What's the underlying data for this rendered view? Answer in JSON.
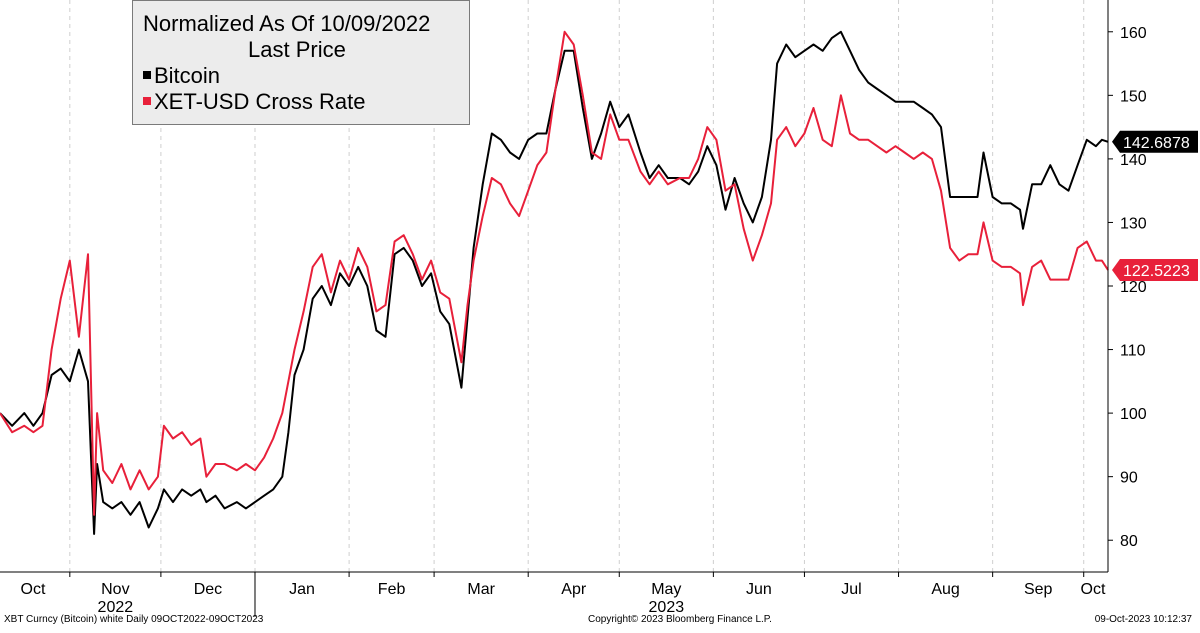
{
  "legend": {
    "title": "Normalized As Of 10/09/2022",
    "subtitle": "Last Price",
    "series": [
      {
        "label": "Bitcoin",
        "color": "#000000"
      },
      {
        "label": "XET-USD Cross Rate",
        "color": "#e8203a"
      }
    ]
  },
  "footer": {
    "left": "XBT Curncy (Bitcoin) white  Daily 09OCT2022-09OCT2023",
    "center": "Copyright© 2023 Bloomberg Finance L.P.",
    "right": "09-Oct-2023 10:12:37"
  },
  "chart_data": {
    "type": "line",
    "title": "Normalized As Of 10/09/2022",
    "subtitle": "Last Price",
    "x_range": [
      "2022-10-09",
      "2023-10-09"
    ],
    "ylim": [
      75,
      165
    ],
    "y_ticks": [
      80,
      90,
      100,
      110,
      120,
      130,
      140,
      150,
      160
    ],
    "x_tick_labels": [
      "Oct",
      "Nov",
      "Dec",
      "Jan",
      "Feb",
      "Mar",
      "Apr",
      "May",
      "Jun",
      "Jul",
      "Aug",
      "Sep",
      "Oct"
    ],
    "year_labels": [
      {
        "label": "2022",
        "month": "Nov"
      },
      {
        "label": "2023",
        "month": "May"
      }
    ],
    "grid": "vertical dashed at month starts",
    "legend_position": "top-left",
    "last_value_labels": [
      {
        "series": "Bitcoin",
        "value": "142.6878",
        "color": "#000000"
      },
      {
        "series": "XET-USD Cross Rate",
        "value": "122.5223",
        "color": "#e8203a"
      }
    ],
    "series": [
      {
        "name": "Bitcoin",
        "color": "#000000",
        "points": [
          [
            "2022-10-09",
            100
          ],
          [
            "2022-10-13",
            98
          ],
          [
            "2022-10-17",
            100
          ],
          [
            "2022-10-20",
            98
          ],
          [
            "2022-10-23",
            100
          ],
          [
            "2022-10-26",
            106
          ],
          [
            "2022-10-29",
            107
          ],
          [
            "2022-11-01",
            105
          ],
          [
            "2022-11-04",
            110
          ],
          [
            "2022-11-07",
            105
          ],
          [
            "2022-11-09",
            81
          ],
          [
            "2022-11-10",
            92
          ],
          [
            "2022-11-12",
            86
          ],
          [
            "2022-11-15",
            85
          ],
          [
            "2022-11-18",
            86
          ],
          [
            "2022-11-21",
            84
          ],
          [
            "2022-11-24",
            86
          ],
          [
            "2022-11-27",
            82
          ],
          [
            "2022-11-30",
            85
          ],
          [
            "2022-12-02",
            88
          ],
          [
            "2022-12-05",
            86
          ],
          [
            "2022-12-08",
            88
          ],
          [
            "2022-12-11",
            87
          ],
          [
            "2022-12-14",
            88
          ],
          [
            "2022-12-16",
            86
          ],
          [
            "2022-12-19",
            87
          ],
          [
            "2022-12-22",
            85
          ],
          [
            "2022-12-26",
            86
          ],
          [
            "2022-12-29",
            85
          ],
          [
            "2023-01-01",
            86
          ],
          [
            "2023-01-04",
            87
          ],
          [
            "2023-01-07",
            88
          ],
          [
            "2023-01-10",
            90
          ],
          [
            "2023-01-12",
            97
          ],
          [
            "2023-01-14",
            106
          ],
          [
            "2023-01-17",
            110
          ],
          [
            "2023-01-20",
            118
          ],
          [
            "2023-01-23",
            120
          ],
          [
            "2023-01-26",
            117
          ],
          [
            "2023-01-29",
            122
          ],
          [
            "2023-02-01",
            120
          ],
          [
            "2023-02-04",
            123
          ],
          [
            "2023-02-07",
            120
          ],
          [
            "2023-02-10",
            113
          ],
          [
            "2023-02-13",
            112
          ],
          [
            "2023-02-16",
            125
          ],
          [
            "2023-02-19",
            126
          ],
          [
            "2023-02-22",
            124
          ],
          [
            "2023-02-25",
            120
          ],
          [
            "2023-02-28",
            122
          ],
          [
            "2023-03-03",
            116
          ],
          [
            "2023-03-06",
            114
          ],
          [
            "2023-03-10",
            104
          ],
          [
            "2023-03-12",
            115
          ],
          [
            "2023-03-14",
            126
          ],
          [
            "2023-03-17",
            136
          ],
          [
            "2023-03-20",
            144
          ],
          [
            "2023-03-23",
            143
          ],
          [
            "2023-03-26",
            141
          ],
          [
            "2023-03-29",
            140
          ],
          [
            "2023-04-01",
            143
          ],
          [
            "2023-04-04",
            144
          ],
          [
            "2023-04-07",
            144
          ],
          [
            "2023-04-10",
            151
          ],
          [
            "2023-04-13",
            157
          ],
          [
            "2023-04-16",
            157
          ],
          [
            "2023-04-19",
            148
          ],
          [
            "2023-04-22",
            140
          ],
          [
            "2023-04-25",
            144
          ],
          [
            "2023-04-28",
            149
          ],
          [
            "2023-05-01",
            145
          ],
          [
            "2023-05-04",
            147
          ],
          [
            "2023-05-08",
            141
          ],
          [
            "2023-05-11",
            137
          ],
          [
            "2023-05-14",
            139
          ],
          [
            "2023-05-17",
            137
          ],
          [
            "2023-05-21",
            137
          ],
          [
            "2023-05-24",
            136
          ],
          [
            "2023-05-27",
            138
          ],
          [
            "2023-05-30",
            142
          ],
          [
            "2023-06-02",
            139
          ],
          [
            "2023-06-05",
            132
          ],
          [
            "2023-06-08",
            137
          ],
          [
            "2023-06-11",
            133
          ],
          [
            "2023-06-14",
            130
          ],
          [
            "2023-06-17",
            134
          ],
          [
            "2023-06-20",
            143
          ],
          [
            "2023-06-22",
            155
          ],
          [
            "2023-06-25",
            158
          ],
          [
            "2023-06-28",
            156
          ],
          [
            "2023-07-01",
            157
          ],
          [
            "2023-07-04",
            158
          ],
          [
            "2023-07-07",
            157
          ],
          [
            "2023-07-10",
            159
          ],
          [
            "2023-07-13",
            160
          ],
          [
            "2023-07-16",
            157
          ],
          [
            "2023-07-19",
            154
          ],
          [
            "2023-07-22",
            152
          ],
          [
            "2023-07-25",
            151
          ],
          [
            "2023-07-28",
            150
          ],
          [
            "2023-07-31",
            149
          ],
          [
            "2023-08-03",
            149
          ],
          [
            "2023-08-06",
            149
          ],
          [
            "2023-08-09",
            148
          ],
          [
            "2023-08-12",
            147
          ],
          [
            "2023-08-15",
            145
          ],
          [
            "2023-08-18",
            134
          ],
          [
            "2023-08-21",
            134
          ],
          [
            "2023-08-24",
            134
          ],
          [
            "2023-08-27",
            134
          ],
          [
            "2023-08-29",
            141
          ],
          [
            "2023-09-01",
            134
          ],
          [
            "2023-09-04",
            133
          ],
          [
            "2023-09-07",
            133
          ],
          [
            "2023-09-10",
            132
          ],
          [
            "2023-09-11",
            129
          ],
          [
            "2023-09-14",
            136
          ],
          [
            "2023-09-17",
            136
          ],
          [
            "2023-09-20",
            139
          ],
          [
            "2023-09-23",
            136
          ],
          [
            "2023-09-26",
            135
          ],
          [
            "2023-09-29",
            139
          ],
          [
            "2023-10-02",
            143
          ],
          [
            "2023-10-05",
            142
          ],
          [
            "2023-10-07",
            143
          ],
          [
            "2023-10-09",
            142.6878
          ]
        ]
      },
      {
        "name": "XET-USD Cross Rate",
        "color": "#e8203a",
        "points": [
          [
            "2022-10-09",
            100
          ],
          [
            "2022-10-13",
            97
          ],
          [
            "2022-10-17",
            98
          ],
          [
            "2022-10-20",
            97
          ],
          [
            "2022-10-23",
            98
          ],
          [
            "2022-10-26",
            110
          ],
          [
            "2022-10-29",
            118
          ],
          [
            "2022-11-01",
            124
          ],
          [
            "2022-11-04",
            112
          ],
          [
            "2022-11-07",
            125
          ],
          [
            "2022-11-09",
            84
          ],
          [
            "2022-11-10",
            100
          ],
          [
            "2022-11-12",
            91
          ],
          [
            "2022-11-15",
            89
          ],
          [
            "2022-11-18",
            92
          ],
          [
            "2022-11-21",
            88
          ],
          [
            "2022-11-24",
            91
          ],
          [
            "2022-11-27",
            88
          ],
          [
            "2022-11-30",
            90
          ],
          [
            "2022-12-02",
            98
          ],
          [
            "2022-12-05",
            96
          ],
          [
            "2022-12-08",
            97
          ],
          [
            "2022-12-11",
            95
          ],
          [
            "2022-12-14",
            96
          ],
          [
            "2022-12-16",
            90
          ],
          [
            "2022-12-19",
            92
          ],
          [
            "2022-12-22",
            92
          ],
          [
            "2022-12-26",
            91
          ],
          [
            "2022-12-29",
            92
          ],
          [
            "2023-01-01",
            91
          ],
          [
            "2023-01-04",
            93
          ],
          [
            "2023-01-07",
            96
          ],
          [
            "2023-01-10",
            100
          ],
          [
            "2023-01-12",
            105
          ],
          [
            "2023-01-14",
            110
          ],
          [
            "2023-01-17",
            116
          ],
          [
            "2023-01-20",
            123
          ],
          [
            "2023-01-23",
            125
          ],
          [
            "2023-01-26",
            119
          ],
          [
            "2023-01-29",
            124
          ],
          [
            "2023-02-01",
            121
          ],
          [
            "2023-02-04",
            126
          ],
          [
            "2023-02-07",
            123
          ],
          [
            "2023-02-10",
            116
          ],
          [
            "2023-02-13",
            117
          ],
          [
            "2023-02-16",
            127
          ],
          [
            "2023-02-19",
            128
          ],
          [
            "2023-02-22",
            125
          ],
          [
            "2023-02-25",
            121
          ],
          [
            "2023-02-28",
            124
          ],
          [
            "2023-03-03",
            119
          ],
          [
            "2023-03-06",
            118
          ],
          [
            "2023-03-10",
            108
          ],
          [
            "2023-03-12",
            117
          ],
          [
            "2023-03-14",
            124
          ],
          [
            "2023-03-17",
            131
          ],
          [
            "2023-03-20",
            137
          ],
          [
            "2023-03-23",
            136
          ],
          [
            "2023-03-26",
            133
          ],
          [
            "2023-03-29",
            131
          ],
          [
            "2023-04-01",
            135
          ],
          [
            "2023-04-04",
            139
          ],
          [
            "2023-04-07",
            141
          ],
          [
            "2023-04-10",
            151
          ],
          [
            "2023-04-13",
            160
          ],
          [
            "2023-04-16",
            158
          ],
          [
            "2023-04-19",
            150
          ],
          [
            "2023-04-22",
            141
          ],
          [
            "2023-04-25",
            140
          ],
          [
            "2023-04-28",
            147
          ],
          [
            "2023-05-01",
            143
          ],
          [
            "2023-05-04",
            143
          ],
          [
            "2023-05-08",
            138
          ],
          [
            "2023-05-11",
            136
          ],
          [
            "2023-05-14",
            138
          ],
          [
            "2023-05-17",
            136
          ],
          [
            "2023-05-21",
            137
          ],
          [
            "2023-05-24",
            137
          ],
          [
            "2023-05-27",
            140
          ],
          [
            "2023-05-30",
            145
          ],
          [
            "2023-06-02",
            143
          ],
          [
            "2023-06-05",
            135
          ],
          [
            "2023-06-08",
            136
          ],
          [
            "2023-06-11",
            129
          ],
          [
            "2023-06-14",
            124
          ],
          [
            "2023-06-17",
            128
          ],
          [
            "2023-06-20",
            133
          ],
          [
            "2023-06-22",
            143
          ],
          [
            "2023-06-25",
            145
          ],
          [
            "2023-06-28",
            142
          ],
          [
            "2023-07-01",
            144
          ],
          [
            "2023-07-04",
            148
          ],
          [
            "2023-07-07",
            143
          ],
          [
            "2023-07-10",
            142
          ],
          [
            "2023-07-13",
            150
          ],
          [
            "2023-07-16",
            144
          ],
          [
            "2023-07-19",
            143
          ],
          [
            "2023-07-22",
            143
          ],
          [
            "2023-07-25",
            142
          ],
          [
            "2023-07-28",
            141
          ],
          [
            "2023-07-31",
            142
          ],
          [
            "2023-08-03",
            141
          ],
          [
            "2023-08-06",
            140
          ],
          [
            "2023-08-09",
            141
          ],
          [
            "2023-08-12",
            140
          ],
          [
            "2023-08-15",
            135
          ],
          [
            "2023-08-18",
            126
          ],
          [
            "2023-08-21",
            124
          ],
          [
            "2023-08-24",
            125
          ],
          [
            "2023-08-27",
            125
          ],
          [
            "2023-08-29",
            130
          ],
          [
            "2023-09-01",
            124
          ],
          [
            "2023-09-04",
            123
          ],
          [
            "2023-09-07",
            123
          ],
          [
            "2023-09-10",
            122
          ],
          [
            "2023-09-11",
            117
          ],
          [
            "2023-09-14",
            123
          ],
          [
            "2023-09-17",
            124
          ],
          [
            "2023-09-20",
            121
          ],
          [
            "2023-09-23",
            121
          ],
          [
            "2023-09-26",
            121
          ],
          [
            "2023-09-29",
            126
          ],
          [
            "2023-10-02",
            127
          ],
          [
            "2023-10-05",
            124
          ],
          [
            "2023-10-07",
            124
          ],
          [
            "2023-10-09",
            122.5223
          ]
        ]
      }
    ]
  }
}
